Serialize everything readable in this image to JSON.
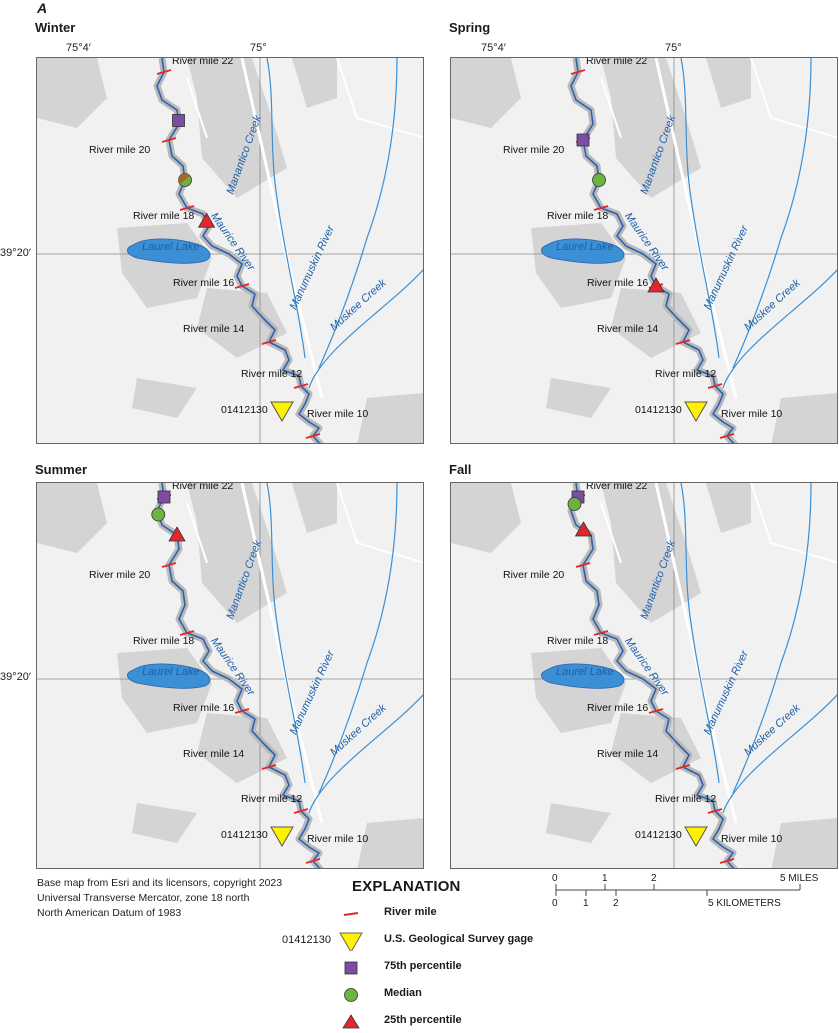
{
  "figure_letter": "A",
  "panels": [
    {
      "season": "Winter",
      "markers": {
        "p75": "20.5",
        "median": "18.8",
        "p25": "17.6",
        "median_style": "split"
      }
    },
    {
      "season": "Spring",
      "markers": {
        "p75": "20",
        "median": "18.8",
        "p25": "16"
      }
    },
    {
      "season": "Summer",
      "markers": {
        "p75": "22",
        "median": "21.5",
        "p25": "20.8"
      }
    },
    {
      "season": "Fall",
      "markers": {
        "p75": "22",
        "median": "21.8",
        "p25": "21"
      }
    }
  ],
  "coordinates": {
    "lon_left": "75°4′",
    "lon_right": "75°",
    "lat": "39°20′"
  },
  "river_mile_labels": [
    "River mile 22",
    "River mile 20",
    "River mile 18",
    "River mile 16",
    "River mile 14",
    "River mile 12",
    "River mile 10"
  ],
  "water_labels": {
    "manantico": "Manantico Creek",
    "maurice": "Maurice River",
    "manumuskin": "Manumuskin River",
    "muskee": "Muskee Creek",
    "laurel": "Laurel Lake"
  },
  "gage_id": "01412130",
  "credits": [
    "Base map from Esri and its licensors, copyright 2023",
    "Universal Transverse Mercator, zone 18 north",
    "North American Datum of 1983"
  ],
  "explanation": {
    "title": "EXPLANATION",
    "river_mile": "River mile",
    "gage": "U.S. Geological Survey gage",
    "p75": "75th percentile",
    "median": "Median",
    "p25": "25th percentile",
    "gage_id": "01412130"
  },
  "scale_bar": {
    "miles_ticks": [
      "0",
      "1",
      "2",
      "5 MILES"
    ],
    "km_ticks": [
      "0",
      "1",
      "2",
      "5 KILOMETERS"
    ]
  },
  "colors": {
    "river": "#2b62b0",
    "tick": "#e3262b",
    "p75": "#7b4ea3",
    "median": "#6db33f",
    "p25": "#e3262b",
    "gage": "#fff200",
    "urban": "#c9c9c9",
    "land": "#f1f1f1"
  }
}
